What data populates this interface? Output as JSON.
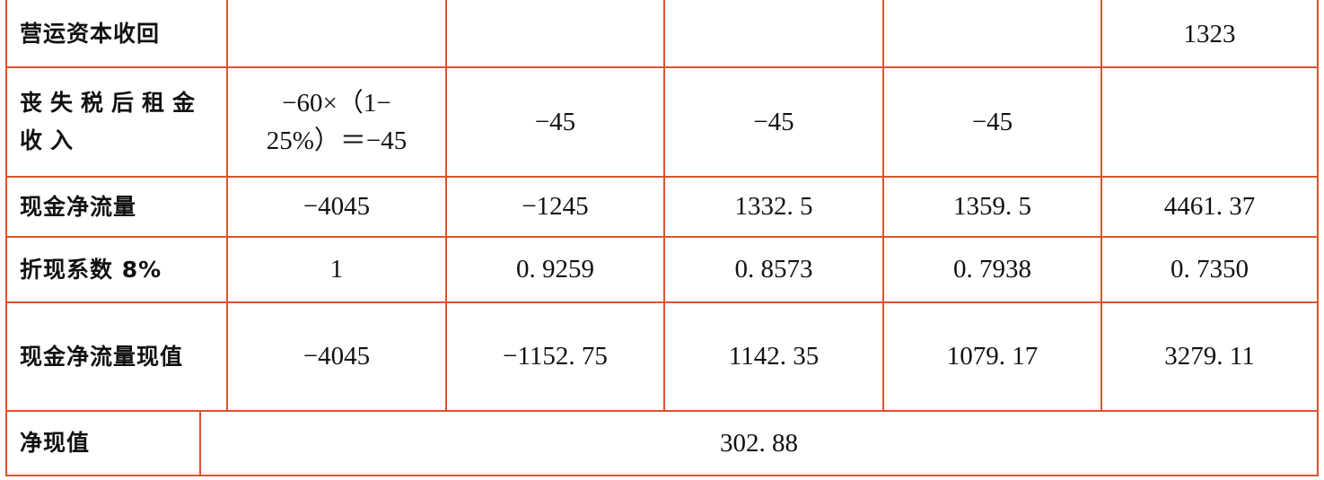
{
  "table": {
    "rows": [
      {
        "label": "营运资本收回",
        "cells": [
          "",
          "",
          "",
          "",
          "1323"
        ]
      },
      {
        "label_line1": "丧失税后租金",
        "label_line2": "收入",
        "first_line1": "−60×（1−",
        "first_line2": "25%）＝−45",
        "cells": [
          "−45",
          "−45",
          "−45",
          ""
        ]
      },
      {
        "label": "现金净流量",
        "cells": [
          "−4045",
          "−1245",
          "1332. 5",
          "1359. 5",
          "4461. 37"
        ]
      },
      {
        "label": "折现系数 8%",
        "cells": [
          "1",
          "0. 9259",
          "0. 8573",
          "0. 7938",
          "0. 7350"
        ]
      },
      {
        "label": "现金净流量现值",
        "cells": [
          "−4045",
          "−1152. 75",
          "1142. 35",
          "1079. 17",
          "3279. 11"
        ]
      }
    ],
    "total": {
      "label": "净现值",
      "value": "302. 88"
    }
  },
  "colors": {
    "border": "#d9552c",
    "text": "#111111"
  }
}
